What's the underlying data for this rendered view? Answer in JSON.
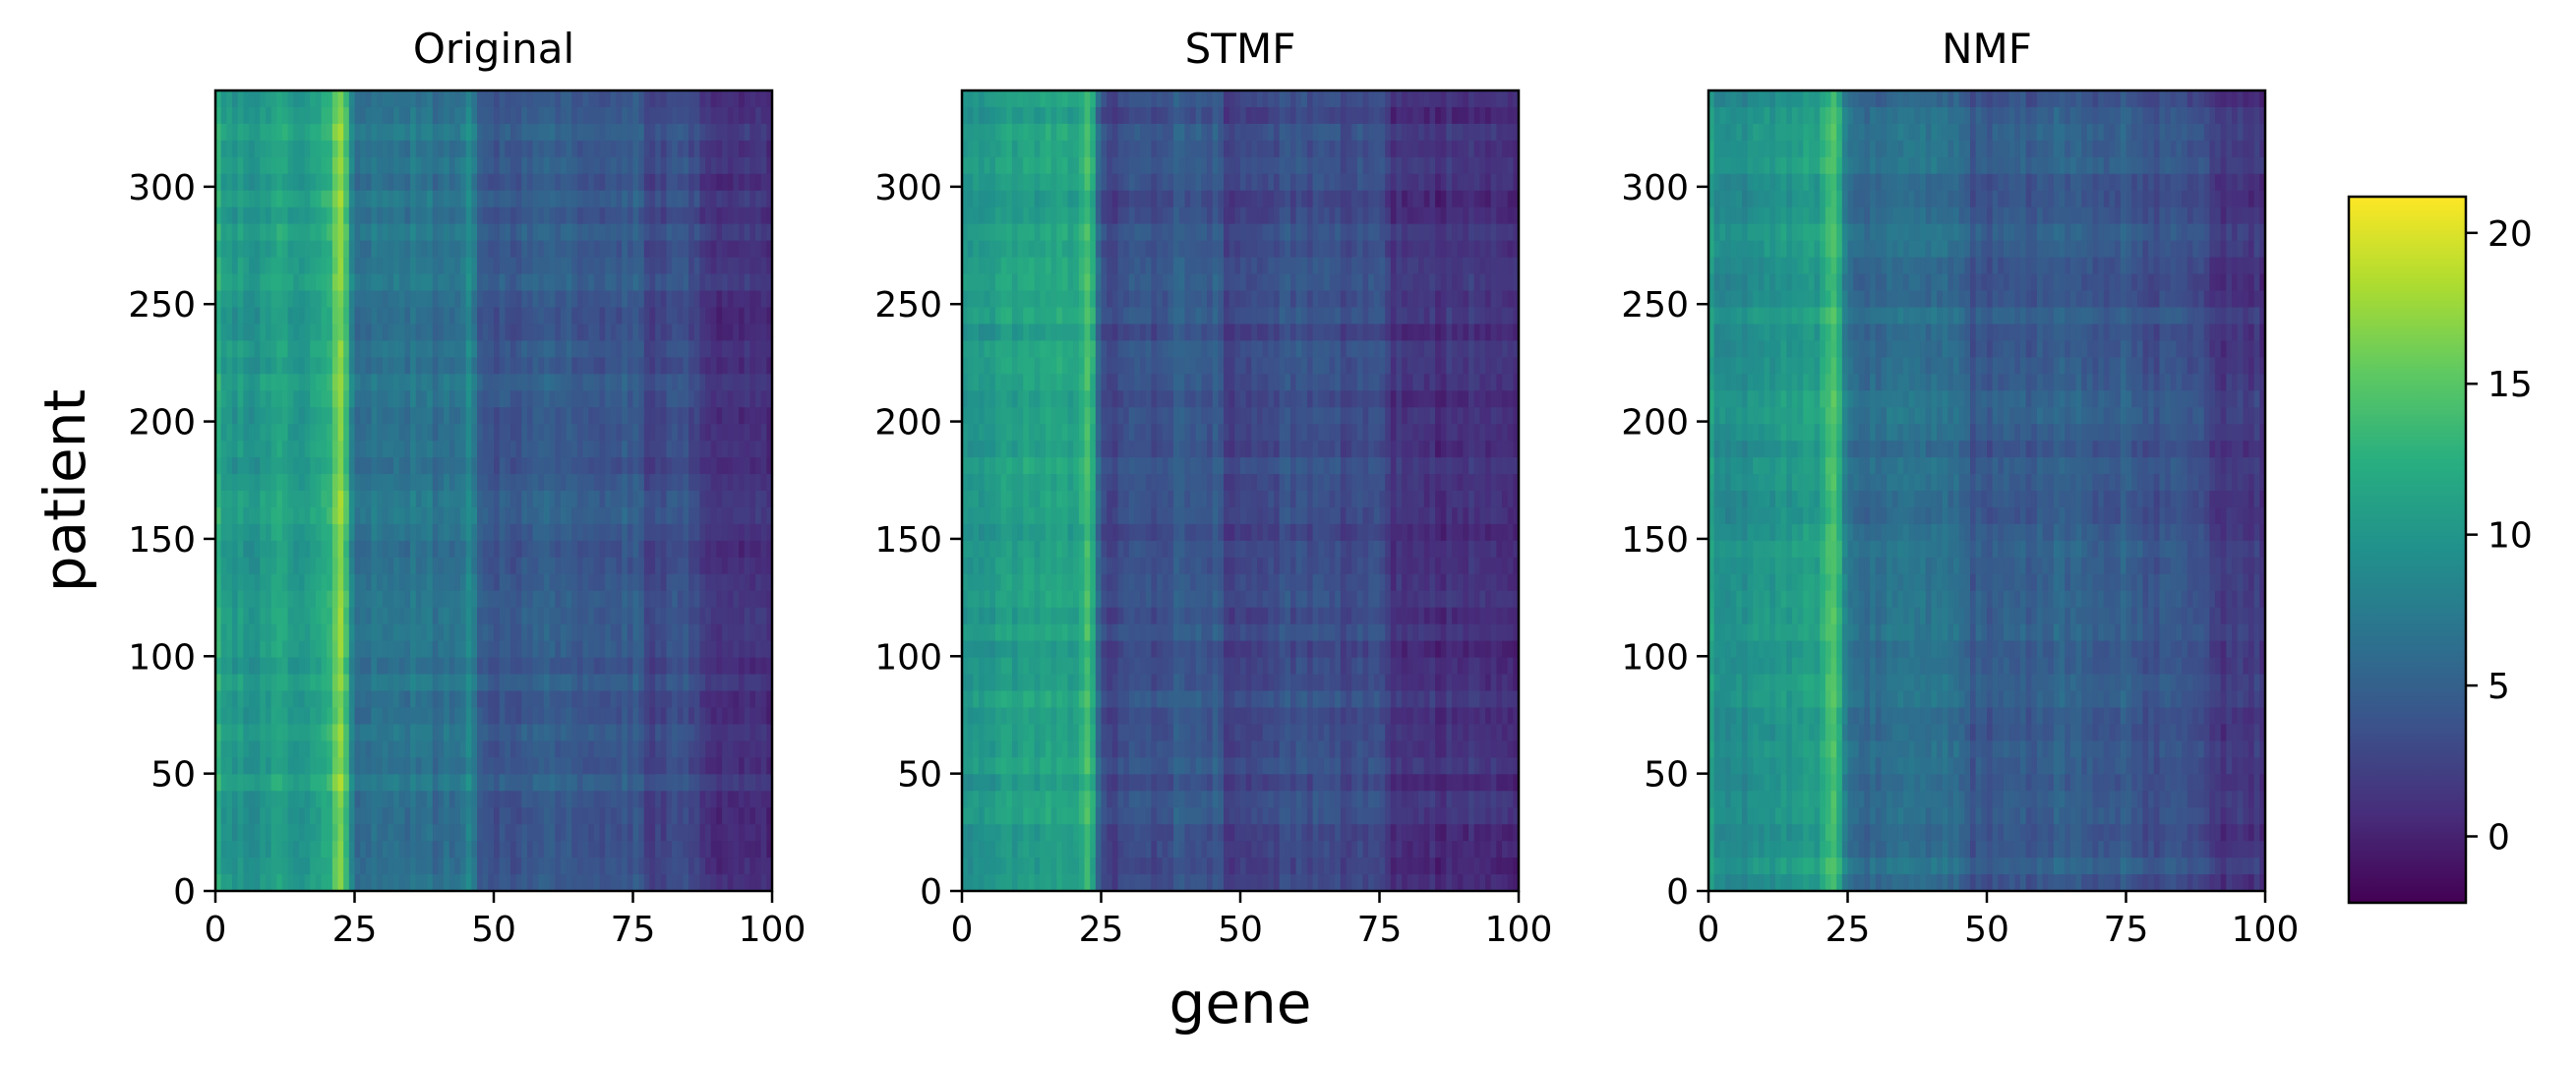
{
  "chart_data": [
    {
      "type": "heatmap",
      "title": "Original",
      "x_range": [
        0,
        100
      ],
      "y_range": [
        0,
        341
      ],
      "x_ticks": [
        "0",
        "25",
        "50",
        "75",
        "100"
      ],
      "y_ticks": [
        "0",
        "50",
        "100",
        "150",
        "200",
        "250",
        "300"
      ],
      "column_mean_profile": [
        [
          0,
          15
        ],
        [
          1,
          11
        ],
        [
          3,
          10.5
        ],
        [
          6,
          10
        ],
        [
          10,
          10.5
        ],
        [
          12,
          12
        ],
        [
          13,
          11
        ],
        [
          15,
          10.5
        ],
        [
          18,
          11
        ],
        [
          20,
          12
        ],
        [
          21,
          14
        ],
        [
          22,
          16
        ],
        [
          23,
          17
        ],
        [
          24,
          10
        ],
        [
          25,
          6
        ],
        [
          27,
          7
        ],
        [
          30,
          6.5
        ],
        [
          35,
          7
        ],
        [
          40,
          6.5
        ],
        [
          45,
          7
        ],
        [
          46,
          9.5
        ],
        [
          47,
          4.5
        ],
        [
          50,
          4
        ],
        [
          55,
          4.5
        ],
        [
          60,
          5
        ],
        [
          65,
          4.5
        ],
        [
          70,
          4
        ],
        [
          75,
          4.5
        ],
        [
          76,
          5.5
        ],
        [
          77,
          2.5
        ],
        [
          80,
          3
        ],
        [
          85,
          3.5
        ],
        [
          86,
          2.5
        ],
        [
          90,
          1.5
        ],
        [
          95,
          1.2
        ],
        [
          98,
          1
        ],
        [
          100,
          1
        ]
      ]
    },
    {
      "type": "heatmap",
      "title": "STMF",
      "x_range": [
        0,
        100
      ],
      "y_range": [
        0,
        341
      ],
      "x_ticks": [
        "0",
        "25",
        "50",
        "75",
        "100"
      ],
      "y_ticks": [
        "0",
        "50",
        "100",
        "150",
        "200",
        "250",
        "300"
      ],
      "column_mean_profile": [
        [
          0,
          10
        ],
        [
          5,
          10.5
        ],
        [
          10,
          11
        ],
        [
          15,
          11
        ],
        [
          20,
          11.5
        ],
        [
          22,
          13
        ],
        [
          23,
          16
        ],
        [
          24,
          9
        ],
        [
          25,
          3.5
        ],
        [
          27,
          2.5
        ],
        [
          30,
          4
        ],
        [
          35,
          3.5
        ],
        [
          40,
          4.5
        ],
        [
          45,
          4
        ],
        [
          46,
          6.5
        ],
        [
          47,
          2
        ],
        [
          50,
          2.5
        ],
        [
          55,
          3
        ],
        [
          60,
          3.5
        ],
        [
          65,
          3
        ],
        [
          70,
          3
        ],
        [
          75,
          3.5
        ],
        [
          76,
          2.5
        ],
        [
          77,
          1
        ],
        [
          80,
          1.5
        ],
        [
          85,
          1
        ],
        [
          90,
          1
        ],
        [
          95,
          0.8
        ],
        [
          100,
          1
        ]
      ]
    },
    {
      "type": "heatmap",
      "title": "NMF",
      "x_range": [
        0,
        100
      ],
      "y_range": [
        0,
        341
      ],
      "x_ticks": [
        "0",
        "25",
        "50",
        "75",
        "100"
      ],
      "y_ticks": [
        "0",
        "50",
        "100",
        "150",
        "200",
        "250",
        "300"
      ],
      "column_mean_profile": [
        [
          0,
          13
        ],
        [
          1,
          9.5
        ],
        [
          5,
          9
        ],
        [
          10,
          9.5
        ],
        [
          15,
          10
        ],
        [
          18,
          10.5
        ],
        [
          20,
          11
        ],
        [
          22,
          14
        ],
        [
          23,
          15
        ],
        [
          24,
          10
        ],
        [
          25,
          6.5
        ],
        [
          28,
          6
        ],
        [
          35,
          6
        ],
        [
          40,
          6
        ],
        [
          45,
          6
        ],
        [
          46,
          5.5
        ],
        [
          47,
          4
        ],
        [
          50,
          4
        ],
        [
          55,
          4.5
        ],
        [
          58,
          4
        ],
        [
          60,
          5
        ],
        [
          65,
          4.5
        ],
        [
          70,
          4.5
        ],
        [
          75,
          4.5
        ],
        [
          76,
          4
        ],
        [
          77,
          3.5
        ],
        [
          80,
          3.5
        ],
        [
          85,
          3.5
        ],
        [
          89,
          3
        ],
        [
          90,
          1.8
        ],
        [
          95,
          1.5
        ],
        [
          100,
          1.5
        ]
      ]
    }
  ],
  "shared": {
    "xlabel": "gene",
    "ylabel": "patient",
    "colorbar": {
      "colormap": "viridis",
      "range": [
        -2.2,
        21.2
      ],
      "ticks": [
        "0",
        "5",
        "10",
        "15",
        "20"
      ]
    }
  }
}
